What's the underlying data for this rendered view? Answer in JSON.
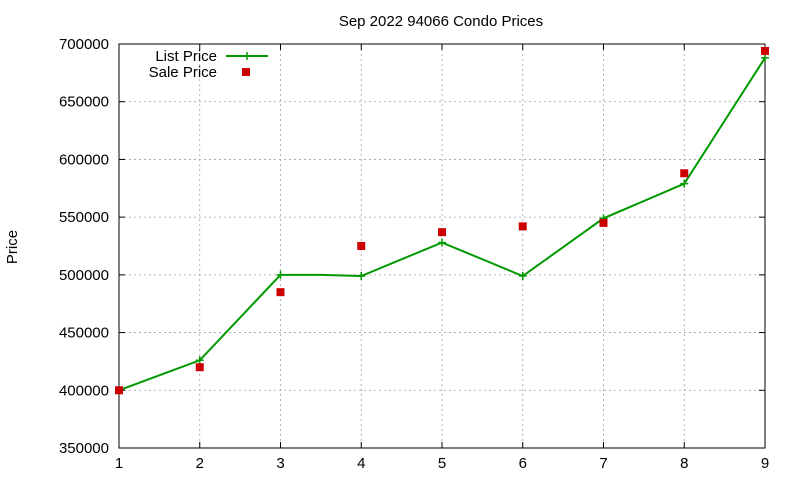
{
  "chart_data": {
    "type": "line",
    "title": "Sep 2022 94066 Condo Prices",
    "xlabel": "",
    "ylabel": "Price",
    "xlim": [
      1,
      9
    ],
    "ylim": [
      350000,
      700000
    ],
    "x_ticks": [
      "1",
      "2",
      "3",
      "4",
      "5",
      "6",
      "7",
      "8",
      "9"
    ],
    "y_ticks": [
      "350000",
      "400000",
      "450000",
      "500000",
      "550000",
      "600000",
      "650000",
      "700000"
    ],
    "grid": true,
    "legend_position": "top-left",
    "series": [
      {
        "name": "List Price",
        "kind": "line",
        "marker": "plus",
        "color": "#009900",
        "x": [
          1,
          2,
          3,
          3.5,
          4,
          5,
          6,
          7,
          8,
          9
        ],
        "y": [
          400000,
          426000,
          500000,
          500000,
          499000,
          528000,
          499000,
          549000,
          579000,
          688000
        ]
      },
      {
        "name": "Sale Price",
        "kind": "scatter",
        "marker": "square",
        "color": "#cc0000",
        "x": [
          1,
          2,
          3,
          4,
          5,
          6,
          7,
          8,
          9
        ],
        "y": [
          400000,
          420000,
          485000,
          525000,
          537000,
          542000,
          545000,
          588000,
          694000
        ]
      }
    ]
  }
}
